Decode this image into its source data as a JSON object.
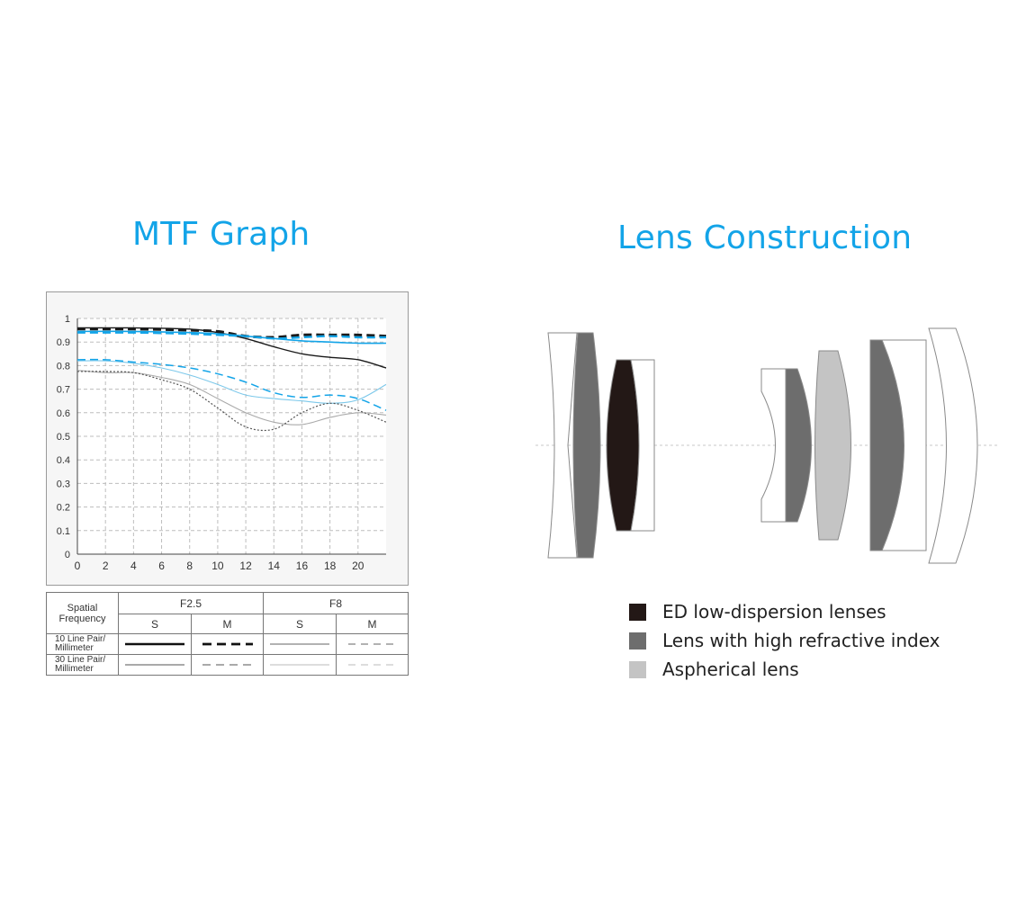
{
  "titles": {
    "mtf": "MTF Graph",
    "lens": "Lens Construction"
  },
  "chart_data": {
    "type": "line",
    "title": "",
    "xlabel": "",
    "ylabel": "",
    "xlim": [
      0,
      22
    ],
    "ylim": [
      0,
      1
    ],
    "x_ticks": [
      "0",
      "2",
      "4",
      "6",
      "8",
      "10",
      "12",
      "14",
      "16",
      "18",
      "20"
    ],
    "y_ticks": [
      "0",
      "0.1",
      "0.2",
      "0.3",
      "0.4",
      "0.5",
      "0.6",
      "0.7",
      "0.8",
      "0.9",
      "1"
    ],
    "grid": true,
    "series": [
      {
        "name": "",
        "aperture": "F2.5",
        "orientation": "S",
        "frequency": "10 Line Pair/ Millimeter",
        "color": "#1a1a1a",
        "style": "solid",
        "width": 1.4,
        "x": [
          0,
          4,
          8,
          10,
          12,
          14,
          16,
          18,
          20,
          22
        ],
        "y": [
          0.96,
          0.96,
          0.955,
          0.94,
          0.915,
          0.88,
          0.85,
          0.835,
          0.825,
          0.79
        ]
      },
      {
        "name": "",
        "aperture": "F2.5",
        "orientation": "M",
        "frequency": "10 Line Pair/ Millimeter",
        "color": "#1a1a1a",
        "style": "dashed",
        "width": 3,
        "x": [
          0,
          4,
          8,
          10,
          12,
          14,
          16,
          18,
          20,
          22
        ],
        "y": [
          0.955,
          0.955,
          0.95,
          0.945,
          0.925,
          0.92,
          0.93,
          0.93,
          0.93,
          0.925
        ]
      },
      {
        "name": "",
        "aperture": "F8",
        "orientation": "S",
        "frequency": "10 Line Pair/ Millimeter",
        "color": "#13a4e8",
        "style": "solid",
        "width": 1.6,
        "x": [
          0,
          4,
          8,
          10,
          12,
          14,
          16,
          18,
          20,
          22
        ],
        "y": [
          0.945,
          0.945,
          0.94,
          0.935,
          0.925,
          0.915,
          0.905,
          0.9,
          0.895,
          0.895
        ]
      },
      {
        "name": "",
        "aperture": "F8",
        "orientation": "M",
        "frequency": "10 Line Pair/ Millimeter",
        "color": "#13a4e8",
        "style": "dashed",
        "width": 2.4,
        "x": [
          0,
          4,
          8,
          10,
          12,
          14,
          16,
          18,
          20,
          22
        ],
        "y": [
          0.94,
          0.94,
          0.935,
          0.93,
          0.925,
          0.915,
          0.92,
          0.925,
          0.92,
          0.92
        ]
      },
      {
        "name": "",
        "aperture": "F8",
        "orientation": "S",
        "frequency": "30 Line Pair/ Millimeter",
        "color": "#7cc8ea",
        "style": "solid",
        "width": 1.1,
        "x": [
          0,
          2,
          4,
          6,
          8,
          10,
          12,
          14,
          16,
          18,
          20,
          22
        ],
        "y": [
          0.82,
          0.82,
          0.81,
          0.79,
          0.76,
          0.72,
          0.675,
          0.66,
          0.65,
          0.64,
          0.655,
          0.72
        ]
      },
      {
        "name": "",
        "aperture": "F2.5",
        "orientation": "S",
        "frequency": "30 Line Pair/ Millimeter",
        "color": "#aaaaaa",
        "style": "solid",
        "width": 1.1,
        "x": [
          0,
          2,
          4,
          6,
          8,
          10,
          12,
          14,
          16,
          18,
          20,
          22
        ],
        "y": [
          0.78,
          0.77,
          0.77,
          0.75,
          0.72,
          0.66,
          0.6,
          0.56,
          0.55,
          0.58,
          0.6,
          0.59
        ]
      },
      {
        "name": "",
        "aperture": "F8",
        "orientation": "M",
        "frequency": "30 Line Pair/ Millimeter",
        "color": "#13a4e8",
        "style": "dashed",
        "width": 1.5,
        "x": [
          0,
          2,
          4,
          6,
          8,
          10,
          12,
          14,
          16,
          18,
          20,
          22
        ],
        "y": [
          0.825,
          0.825,
          0.815,
          0.805,
          0.79,
          0.765,
          0.73,
          0.685,
          0.665,
          0.675,
          0.66,
          0.61
        ]
      },
      {
        "name": "",
        "aperture": "F2.5",
        "orientation": "M",
        "frequency": "30 Line Pair/ Millimeter",
        "color": "#555555",
        "style": "dotted",
        "width": 1.2,
        "x": [
          0,
          2,
          4,
          6,
          8,
          10,
          12,
          14,
          16,
          18,
          20,
          22
        ],
        "y": [
          0.775,
          0.775,
          0.77,
          0.74,
          0.7,
          0.62,
          0.54,
          0.53,
          0.6,
          0.64,
          0.61,
          0.56
        ]
      }
    ]
  },
  "mtf_legend": {
    "spatial_frequency": "Spatial Frequency",
    "apertures": [
      "F2.5",
      "F8"
    ],
    "orientations": [
      "S",
      "M",
      "S",
      "M"
    ],
    "rows": [
      {
        "label": "10 Line Pair/ Millimeter",
        "samples": [
          {
            "color": "#111111",
            "dash": "",
            "width": 2.4
          },
          {
            "color": "#111111",
            "dash": "10,6",
            "width": 2.8
          },
          {
            "color": "#999999",
            "dash": "",
            "width": 1.4
          },
          {
            "color": "#999999",
            "dash": "8,6",
            "width": 1.4
          }
        ]
      },
      {
        "label": "30 Line Pair/ Millimeter",
        "samples": [
          {
            "color": "#555555",
            "dash": "",
            "width": 1.1
          },
          {
            "color": "#555555",
            "dash": "9,6",
            "width": 1.1
          },
          {
            "color": "#bbbbbb",
            "dash": "",
            "width": 1.1
          },
          {
            "color": "#bbbbbb",
            "dash": "8,6",
            "width": 1.1
          }
        ]
      }
    ]
  },
  "lens_legend": [
    {
      "label": "ED low-dispersion lenses",
      "color": "#231816"
    },
    {
      "label": "Lens with high refractive index",
      "color": "#6d6d6d"
    },
    {
      "label": "Aspherical lens",
      "color": "#c4c4c4"
    }
  ],
  "lens_colors": {
    "ed": "#231816",
    "high_index": "#6d6d6d",
    "aspherical": "#c4c4c4",
    "standard": "#ffffff",
    "outline": "#8a8a8a",
    "axis": "#c8c8c8"
  }
}
